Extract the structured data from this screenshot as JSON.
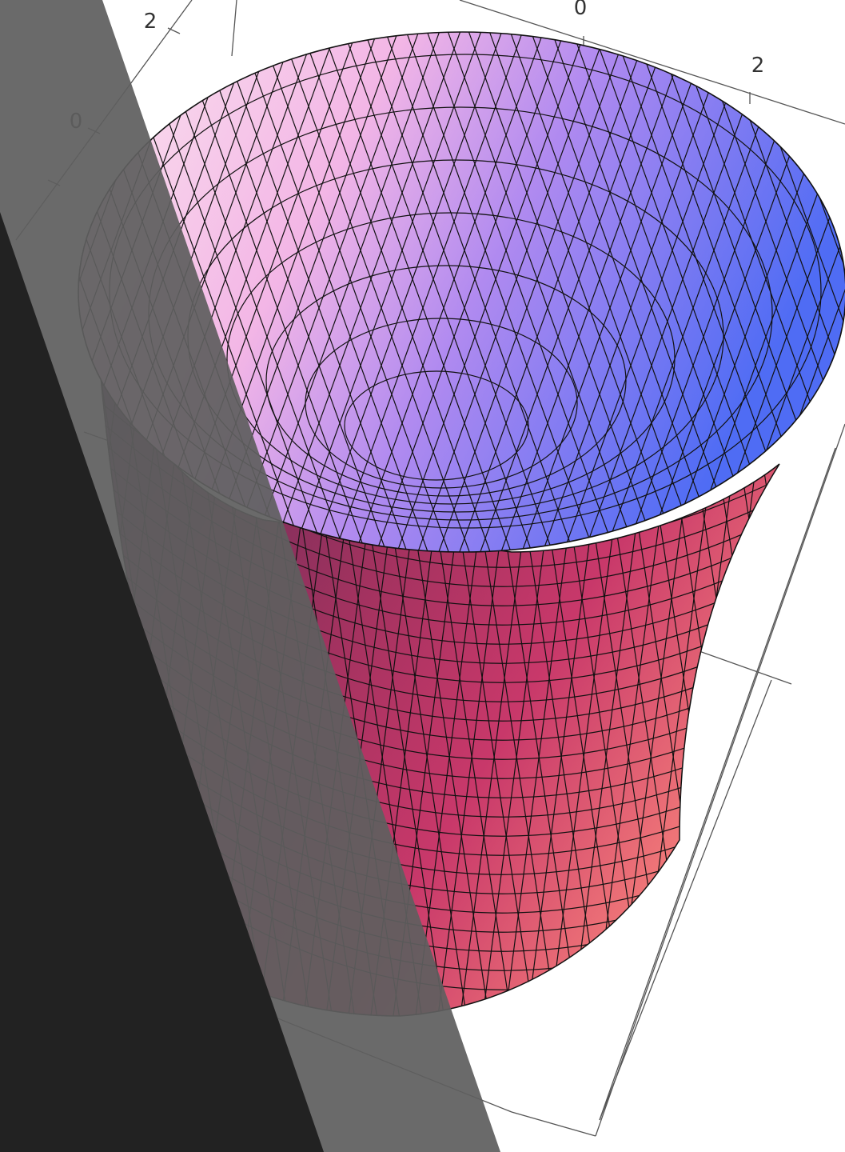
{
  "figure": {
    "description_type": "3d-surface-plot",
    "tick_labels": {
      "top_axis": [
        "0",
        "2"
      ],
      "left_axis": [
        "2",
        "0"
      ]
    }
  },
  "colors": {
    "inner_light": "#fbe6ef",
    "inner_pink": "#f3b6e6",
    "inner_violet": "#b08af0",
    "inner_blue": "#4f6cf4",
    "side_dark": "#4a2a55",
    "side_red": "#c8386a",
    "side_salmon": "#f6807a",
    "overlay_gray": "#5f5f5f",
    "overlay_dark": "#222222"
  }
}
